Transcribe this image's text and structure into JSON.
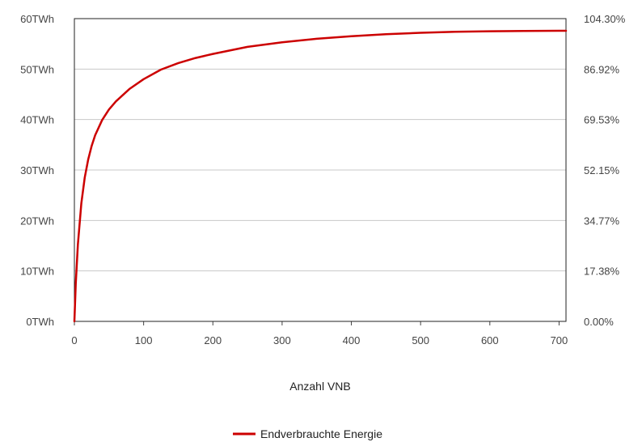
{
  "chart_data": {
    "type": "line",
    "xlabel": "Anzahl VNB",
    "x_ticks": [
      "0",
      "100",
      "200",
      "300",
      "400",
      "500",
      "600",
      "700"
    ],
    "x_tick_values": [
      0,
      100,
      200,
      300,
      400,
      500,
      600,
      700
    ],
    "xlim": [
      0,
      710
    ],
    "y_ticks_left": [
      "0TWh",
      "10TWh",
      "20TWh",
      "30TWh",
      "40TWh",
      "50TWh",
      "60TWh"
    ],
    "y_tick_values": [
      0,
      10,
      20,
      30,
      40,
      50,
      60
    ],
    "y_ticks_right": [
      "0.00%",
      "17.38%",
      "34.77%",
      "52.15%",
      "69.53%",
      "86.92%",
      "104.30%"
    ],
    "ylim": [
      0,
      60
    ],
    "grid": true,
    "legend_position": "bottom-center",
    "series": [
      {
        "name": "Endverbrauchte Energie",
        "color": "#cc0000",
        "x": [
          0,
          2,
          5,
          10,
          15,
          20,
          25,
          30,
          40,
          50,
          60,
          80,
          100,
          125,
          150,
          175,
          200,
          250,
          300,
          350,
          400,
          450,
          500,
          550,
          600,
          650,
          700,
          710
        ],
        "y": [
          0,
          7.5,
          15.2,
          23.4,
          28.5,
          32.1,
          34.8,
          36.9,
          39.9,
          42.0,
          43.6,
          46.1,
          48.0,
          49.9,
          51.2,
          52.2,
          53.0,
          54.4,
          55.3,
          56.0,
          56.5,
          56.9,
          57.2,
          57.4,
          57.5,
          57.55,
          57.6,
          57.6
        ]
      }
    ]
  }
}
